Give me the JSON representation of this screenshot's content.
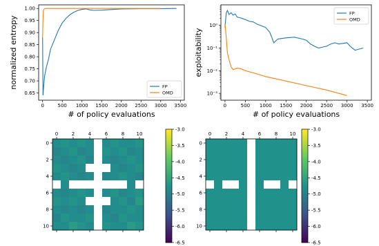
{
  "chart_data": [
    {
      "type": "line",
      "title": "",
      "xlabel": "# of policy evaluations",
      "ylabel": "normalized entropy",
      "xlim": [
        -100,
        3600
      ],
      "ylim": [
        0.62,
        1.015
      ],
      "xticks": [
        0,
        500,
        1000,
        1500,
        2000,
        2500,
        3000,
        3500
      ],
      "yticks": [
        0.65,
        0.7,
        0.75,
        0.8,
        0.85,
        0.9,
        0.95,
        1.0
      ],
      "ytick_labels": [
        "0.65",
        "0.70",
        "0.75",
        "0.80",
        "0.85",
        "0.90",
        "0.95",
        "1.00"
      ],
      "legend_position": "lower right",
      "series": [
        {
          "name": "FP",
          "color": "#1f77b4",
          "x": [
            0,
            10,
            20,
            50,
            100,
            150,
            200,
            300,
            400,
            500,
            600,
            700,
            800,
            900,
            1000,
            1100,
            1200,
            1300,
            1500,
            1800,
            2000,
            2500,
            3000,
            3400
          ],
          "y": [
            0.88,
            0.64,
            0.66,
            0.72,
            0.76,
            0.79,
            0.83,
            0.87,
            0.91,
            0.94,
            0.96,
            0.975,
            0.985,
            0.992,
            0.996,
            0.998,
            0.994,
            0.992,
            0.993,
            0.996,
            0.998,
            0.999,
            0.999,
            1.0
          ]
        },
        {
          "name": "OMD",
          "color": "#ff7f0e",
          "x": [
            0,
            10,
            20,
            40,
            80,
            150,
            500,
            1000,
            2000,
            3000
          ],
          "y": [
            0.88,
            0.96,
            0.99,
            0.998,
            1.0,
            1.0,
            1.0,
            1.0,
            1.0,
            1.0
          ]
        }
      ]
    },
    {
      "type": "line",
      "title": "",
      "xlabel": "# of policy evaluations",
      "ylabel": "exploitability",
      "yscale": "log",
      "xlim": [
        -100,
        3600
      ],
      "ylim": [
        0.0005,
        8
      ],
      "xticks": [
        0,
        500,
        1000,
        1500,
        2000,
        2500,
        3000,
        3500
      ],
      "yticks": [
        0.001,
        0.01,
        0.1,
        1
      ],
      "ytick_labels": [
        "10⁻³",
        "10⁻²",
        "10⁻¹",
        "10⁰"
      ],
      "legend_position": "upper right",
      "series": [
        {
          "name": "FP",
          "color": "#1f77b4",
          "x": [
            0,
            30,
            60,
            100,
            150,
            200,
            250,
            300,
            400,
            500,
            600,
            700,
            800,
            900,
            1000,
            1100,
            1150,
            1200,
            1300,
            1500,
            1700,
            1900,
            2000,
            2100,
            2200,
            2300,
            2400,
            2500,
            2600,
            2700,
            2800,
            2900,
            3000,
            3100,
            3200,
            3300,
            3400
          ],
          "y": [
            0.8,
            3.5,
            4.5,
            3.0,
            3.6,
            2.8,
            3.2,
            2.3,
            2.1,
            1.8,
            1.5,
            1.4,
            1.1,
            0.95,
            0.8,
            0.5,
            0.3,
            0.17,
            0.25,
            0.28,
            0.3,
            0.25,
            0.22,
            0.15,
            0.12,
            0.1,
            0.11,
            0.12,
            0.15,
            0.17,
            0.15,
            0.16,
            0.17,
            0.11,
            0.08,
            0.09,
            0.1
          ]
        },
        {
          "name": "OMD",
          "color": "#ff7f0e",
          "x": [
            0,
            30,
            60,
            100,
            150,
            200,
            300,
            400,
            500,
            700,
            1000,
            1500,
            2000,
            2500,
            3000
          ],
          "y": [
            1.2,
            0.3,
            0.06,
            0.03,
            0.015,
            0.011,
            0.013,
            0.012,
            0.01,
            0.008,
            0.0055,
            0.0035,
            0.0022,
            0.0014,
            0.0008
          ]
        }
      ]
    },
    {
      "type": "heatmap",
      "title": "",
      "xticks": [
        0,
        2,
        4,
        6,
        8,
        10
      ],
      "yticks": [
        0,
        2,
        4,
        6,
        8,
        10
      ],
      "colorbar": {
        "min": -6.5,
        "max": -3.0,
        "ticks": [
          "-3.0",
          "-3.5",
          "-4.0",
          "-4.5",
          "-5.0",
          "-5.5",
          "-6.0",
          "-6.5"
        ]
      },
      "grid_size": 11,
      "walls": "cross-shaped white cells",
      "values": [
        [
          -4.8,
          -4.7,
          -4.8,
          -4.7,
          -4.8,
          null,
          -4.8,
          -4.7,
          -4.8,
          -4.8,
          -4.7
        ],
        [
          -4.9,
          -4.8,
          -4.7,
          -4.9,
          -4.8,
          null,
          -4.7,
          -4.8,
          -4.7,
          -4.9,
          -4.8
        ],
        [
          -4.8,
          -4.9,
          -4.8,
          -4.7,
          -4.9,
          null,
          -4.8,
          -4.9,
          -4.8,
          -4.7,
          -4.8
        ],
        [
          -4.7,
          -4.8,
          -4.9,
          -4.8,
          null,
          null,
          null,
          -4.8,
          -4.9,
          -4.8,
          -4.7
        ],
        [
          -4.8,
          -4.7,
          -4.8,
          -4.9,
          -4.8,
          null,
          -4.9,
          -4.8,
          -4.7,
          -4.8,
          -4.9
        ],
        [
          null,
          -4.8,
          null,
          null,
          null,
          null,
          null,
          null,
          null,
          -4.8,
          null
        ],
        [
          -4.8,
          -4.9,
          -4.8,
          -4.7,
          -4.8,
          null,
          -4.8,
          -4.7,
          -4.9,
          -4.8,
          -4.7
        ],
        [
          -4.7,
          -4.8,
          -4.7,
          -4.8,
          null,
          null,
          null,
          -4.8,
          -4.7,
          -4.9,
          -4.6
        ],
        [
          -4.8,
          -4.9,
          -4.8,
          -4.9,
          -4.8,
          null,
          -4.9,
          -4.8,
          -4.8,
          -4.7,
          -4.8
        ],
        [
          -4.9,
          -4.7,
          -4.8,
          -4.8,
          -4.7,
          null,
          -4.8,
          -4.9,
          -4.7,
          -4.8,
          -4.8
        ],
        [
          -4.8,
          -4.8,
          -4.6,
          -4.7,
          -4.8,
          null,
          -4.7,
          -4.8,
          -4.8,
          -4.6,
          -4.7
        ]
      ]
    },
    {
      "type": "heatmap",
      "title": "",
      "xticks": [
        0,
        2,
        4,
        6,
        8,
        10
      ],
      "yticks": [
        0,
        2,
        4,
        6,
        8,
        10
      ],
      "colorbar": {
        "min": -6.5,
        "max": -3.0,
        "ticks": [
          "-3.0",
          "-3.5",
          "-4.0",
          "-4.5",
          "-5.0",
          "-5.5",
          "-6.0",
          "-6.5"
        ]
      },
      "grid_size": 11,
      "walls": "cross-shaped white cells",
      "values": [
        [
          -4.75,
          -4.75,
          -4.75,
          -4.75,
          -4.75,
          null,
          -4.75,
          -4.75,
          -4.75,
          -4.75,
          -4.75
        ],
        [
          -4.75,
          -4.75,
          -4.75,
          -4.75,
          -4.75,
          null,
          -4.75,
          -4.75,
          -4.75,
          -4.75,
          -4.75
        ],
        [
          -4.75,
          -4.75,
          -4.75,
          -4.75,
          -4.75,
          null,
          -4.75,
          -4.75,
          -4.75,
          -4.75,
          -4.75
        ],
        [
          -4.75,
          -4.75,
          -4.75,
          -4.75,
          -4.75,
          null,
          -4.75,
          -4.75,
          -4.75,
          -4.75,
          -4.75
        ],
        [
          -4.75,
          -4.75,
          -4.75,
          -4.75,
          -4.75,
          null,
          -4.75,
          -4.75,
          -4.75,
          -4.75,
          -4.75
        ],
        [
          null,
          -4.75,
          null,
          null,
          -4.75,
          null,
          -4.75,
          null,
          null,
          -4.75,
          null
        ],
        [
          -4.75,
          -4.75,
          -4.75,
          -4.75,
          -4.75,
          null,
          -4.75,
          -4.75,
          -4.75,
          -4.75,
          -4.75
        ],
        [
          -4.75,
          -4.75,
          -4.75,
          -4.75,
          -4.75,
          null,
          -4.75,
          -4.75,
          -4.75,
          -4.75,
          -4.75
        ],
        [
          -4.75,
          -4.75,
          -4.75,
          -4.75,
          -4.75,
          null,
          -4.75,
          -4.75,
          -4.75,
          -4.75,
          -4.75
        ],
        [
          -4.75,
          -4.75,
          -4.75,
          -4.75,
          -4.75,
          null,
          -4.75,
          -4.75,
          -4.75,
          -4.75,
          -4.75
        ],
        [
          -4.75,
          -4.75,
          -4.75,
          -4.75,
          -4.75,
          null,
          -4.75,
          -4.75,
          -4.75,
          -4.75,
          -4.75
        ]
      ]
    }
  ]
}
